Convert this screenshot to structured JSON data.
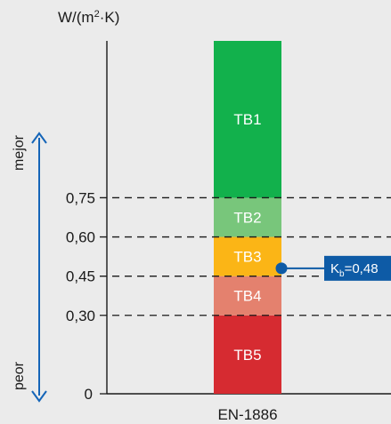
{
  "chart_data": {
    "type": "bar",
    "unit_label_base": "W/(m",
    "unit_label_exp": "2",
    "unit_label_tail": "·K)",
    "category": "EN-1886",
    "ylim": [
      0,
      1.35
    ],
    "y_ticks": [
      {
        "value": 0,
        "label": "0"
      },
      {
        "value": 0.3,
        "label": "0,30"
      },
      {
        "value": 0.45,
        "label": "0,45"
      },
      {
        "value": 0.6,
        "label": "0,60"
      },
      {
        "value": 0.75,
        "label": "0,75"
      }
    ],
    "dashed_lines": [
      0.3,
      0.45,
      0.6,
      0.75
    ],
    "classes": [
      {
        "name": "TB5",
        "from": 0.0,
        "to": 0.3,
        "color": "#d62b31"
      },
      {
        "name": "TB4",
        "from": 0.3,
        "to": 0.45,
        "color": "#e4816e"
      },
      {
        "name": "TB3",
        "from": 0.45,
        "to": 0.6,
        "color": "#fbb516"
      },
      {
        "name": "TB2",
        "from": 0.6,
        "to": 0.75,
        "color": "#78c67b"
      },
      {
        "name": "TB1",
        "from": 0.75,
        "to": 1.35,
        "color": "#12b14c"
      }
    ],
    "marker": {
      "value": 0.48,
      "label_main": "K",
      "label_sub": "b",
      "label_value": "=0,48",
      "color": "#0e5ba6"
    },
    "arrow": {
      "top_label": "mejor",
      "bottom_label": "peor",
      "color": "#1565b8"
    }
  }
}
